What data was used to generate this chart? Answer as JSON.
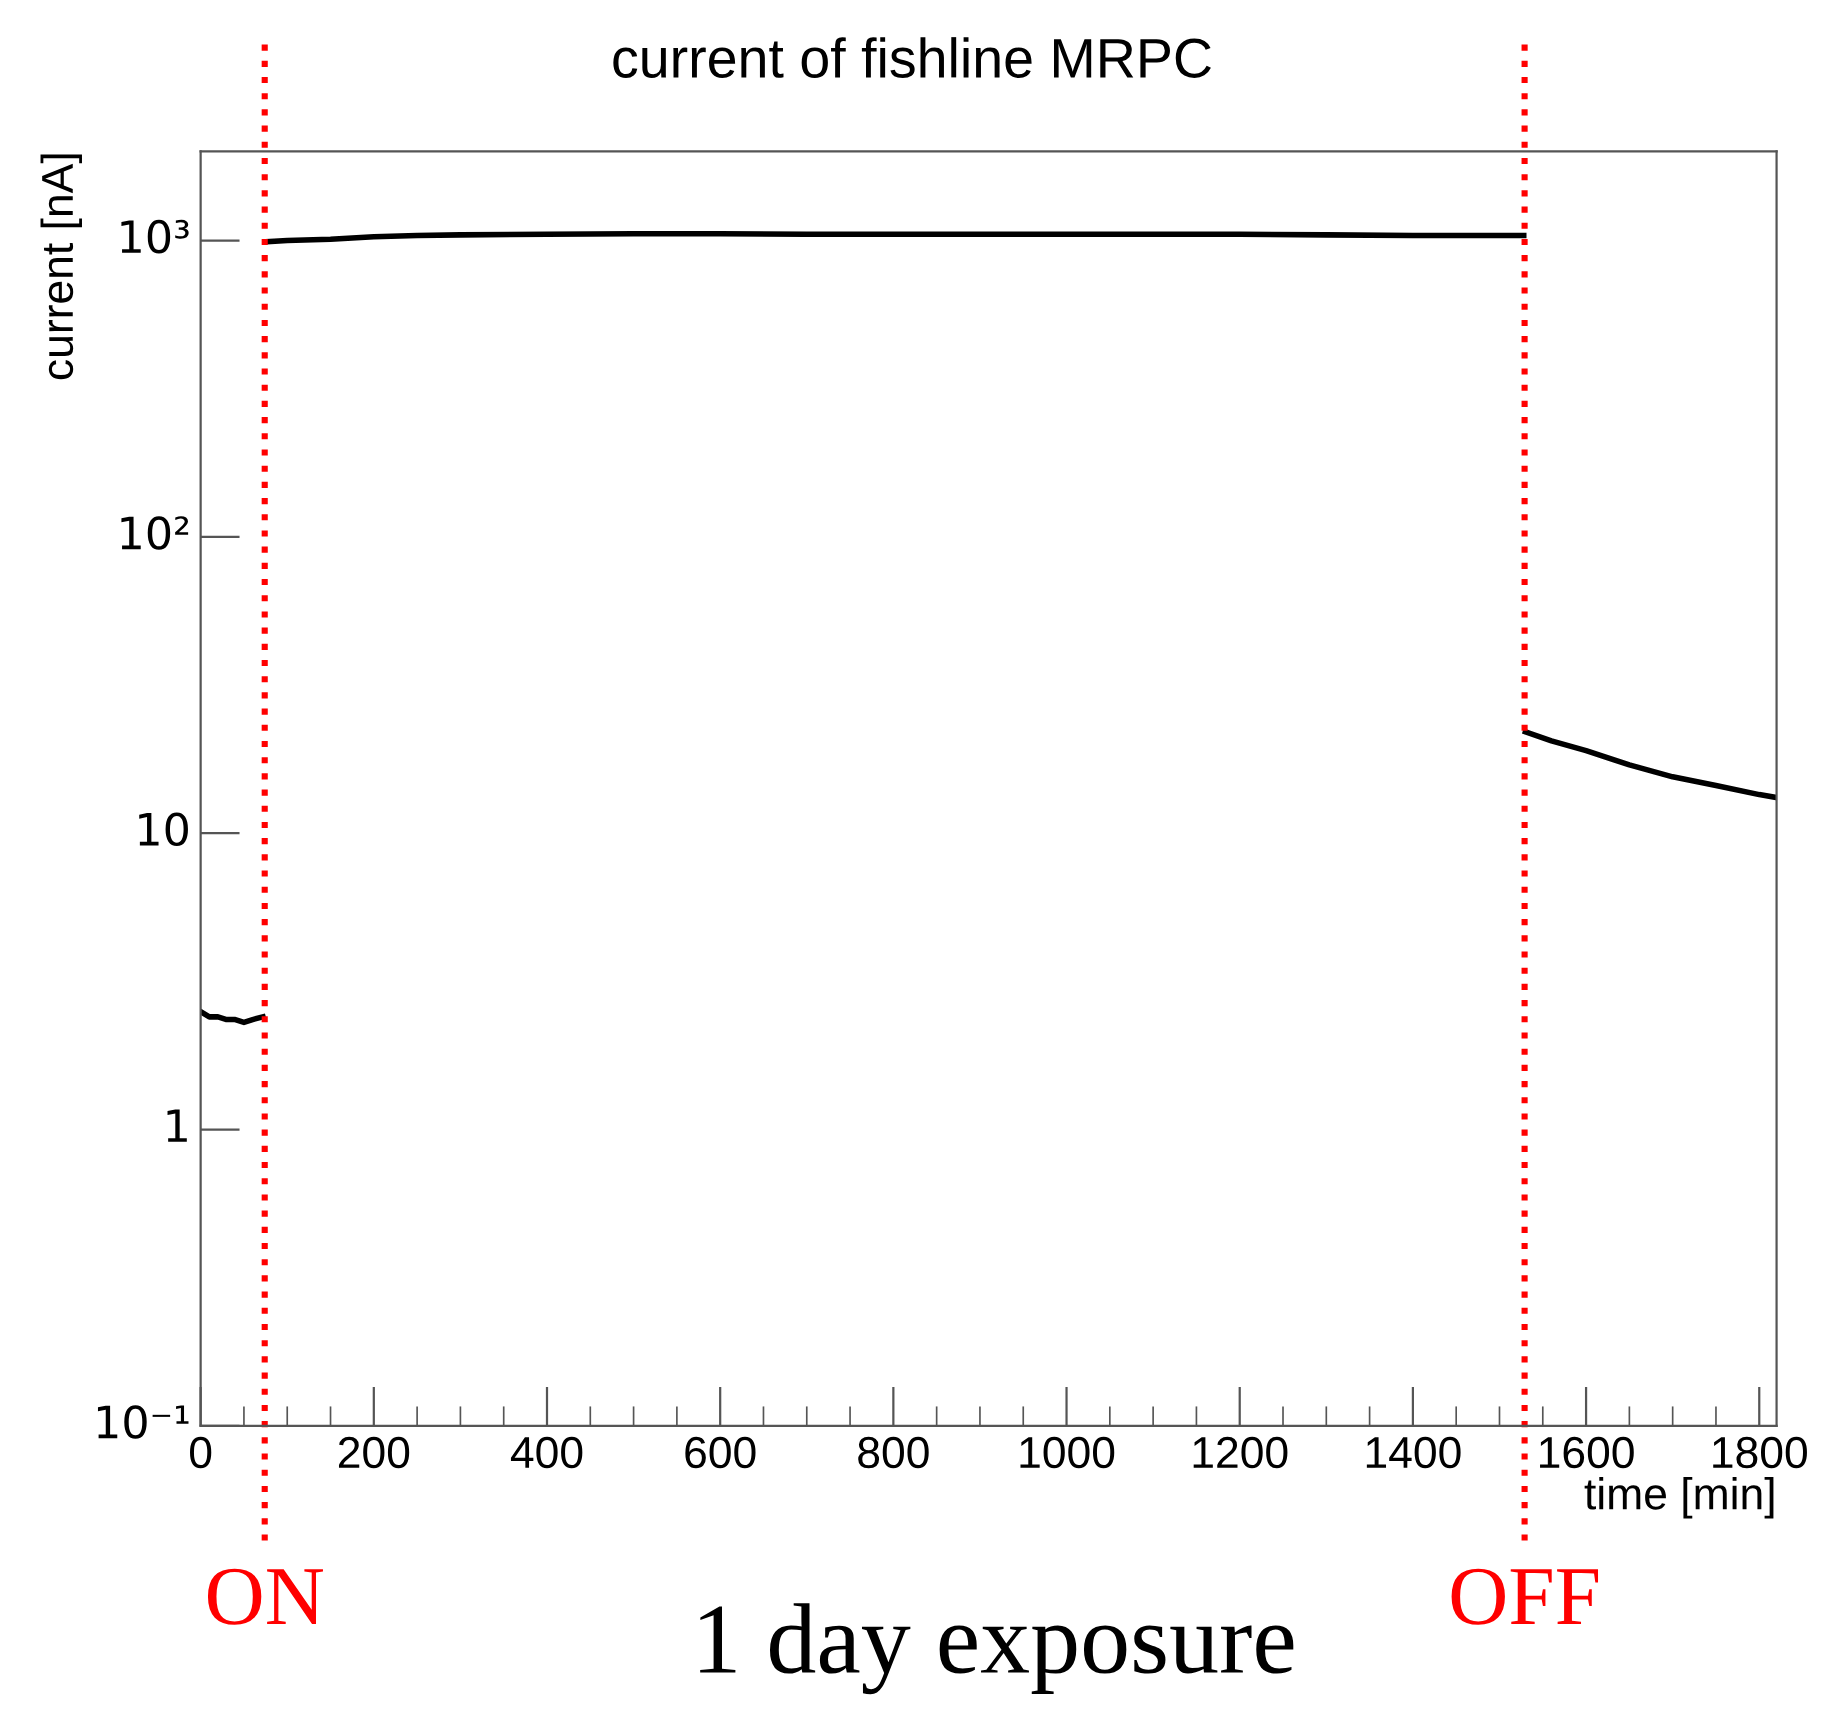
{
  "chart_data": {
    "type": "line",
    "title": "current of fishline MRPC",
    "xlabel": "time [min]",
    "ylabel": "current [nA]",
    "log": "y",
    "xlim": [
      0,
      1820
    ],
    "xticks": [
      0,
      200,
      400,
      600,
      800,
      1000,
      1200,
      1400,
      1600,
      1800
    ],
    "ylim": [
      0.1,
      2000
    ],
    "yticks": [
      {
        "value": 0.1,
        "label": "10⁻¹"
      },
      1,
      10,
      {
        "value": 100,
        "label": "10²"
      },
      {
        "value": 1000,
        "label": "10³"
      }
    ],
    "grid": false,
    "legend": false,
    "marker": "none",
    "line_style": "solid",
    "series": [
      {
        "color": "#000000",
        "x": [
          0,
          10,
          20,
          30,
          40,
          50,
          60,
          72
        ],
        "values": [
          2.5,
          2.4,
          2.4,
          2.35,
          2.35,
          2.3,
          2.35,
          2.4
        ]
      },
      {
        "color": "#000000",
        "x": [
          75,
          100,
          150,
          200,
          250,
          300,
          400,
          500,
          600,
          700,
          800,
          900,
          1000,
          1100,
          1200,
          1300,
          1400,
          1528
        ],
        "values": [
          990,
          1000,
          1010,
          1030,
          1040,
          1045,
          1050,
          1055,
          1055,
          1050,
          1050,
          1050,
          1050,
          1050,
          1050,
          1045,
          1040,
          1040
        ]
      },
      {
        "color": "#000000",
        "x": [
          1530,
          1560,
          1600,
          1650,
          1700,
          1750,
          1800,
          1820
        ],
        "values": [
          22,
          20.5,
          19,
          17,
          15.5,
          14.5,
          13.5,
          13.2
        ]
      }
    ],
    "ref_lines": [
      {
        "axis": "x",
        "value": 74,
        "label": "ON",
        "color": "#ff0000",
        "line_style": "dotted"
      },
      {
        "axis": "x",
        "value": 1529,
        "label": "OFF",
        "color": "#ff0000",
        "line_style": "dotted"
      }
    ],
    "annotations": [
      "1 day exposure"
    ]
  }
}
